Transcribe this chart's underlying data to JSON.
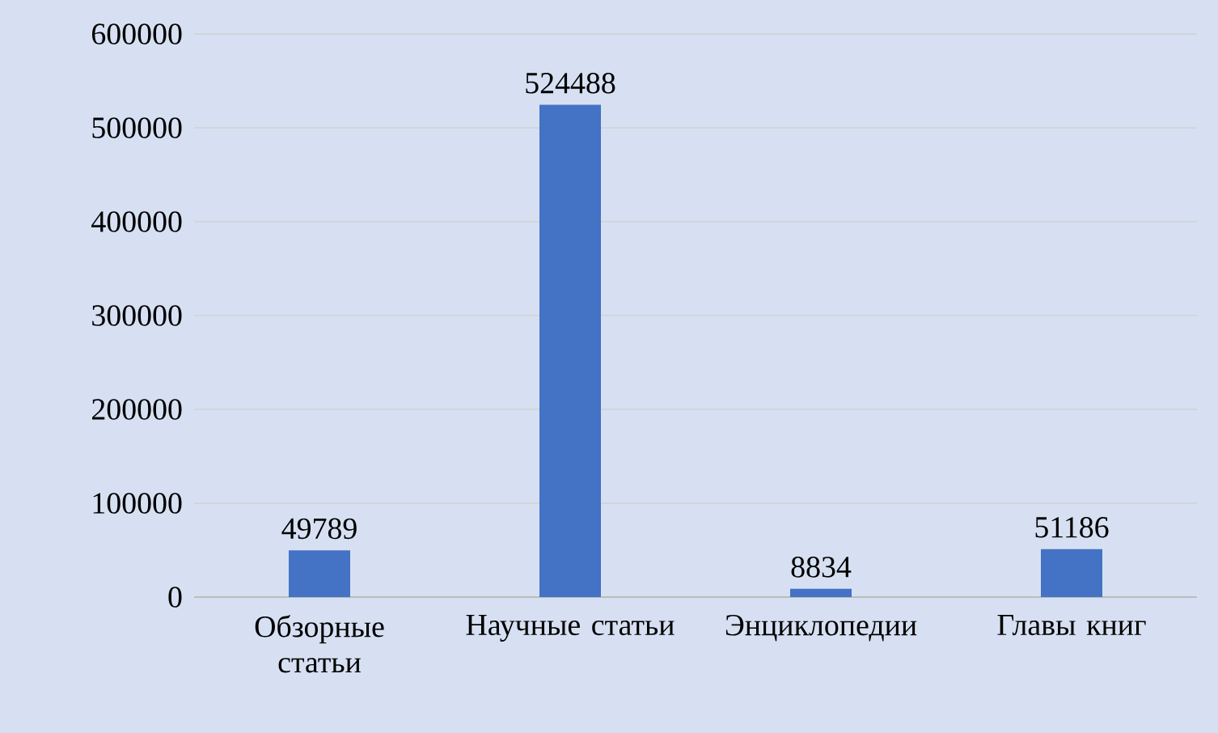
{
  "chart_data": {
    "type": "bar",
    "categories": [
      "Обзорные статьи",
      "Научные статьи",
      "Энциклопедии",
      "Главы книг"
    ],
    "values": [
      49789,
      524488,
      8834,
      51186
    ],
    "color": "#4472c4",
    "ylim": [
      0,
      600000
    ],
    "yticks": [
      0,
      100000,
      200000,
      300000,
      400000,
      500000,
      600000
    ],
    "grid": "y",
    "data_labels": true
  }
}
